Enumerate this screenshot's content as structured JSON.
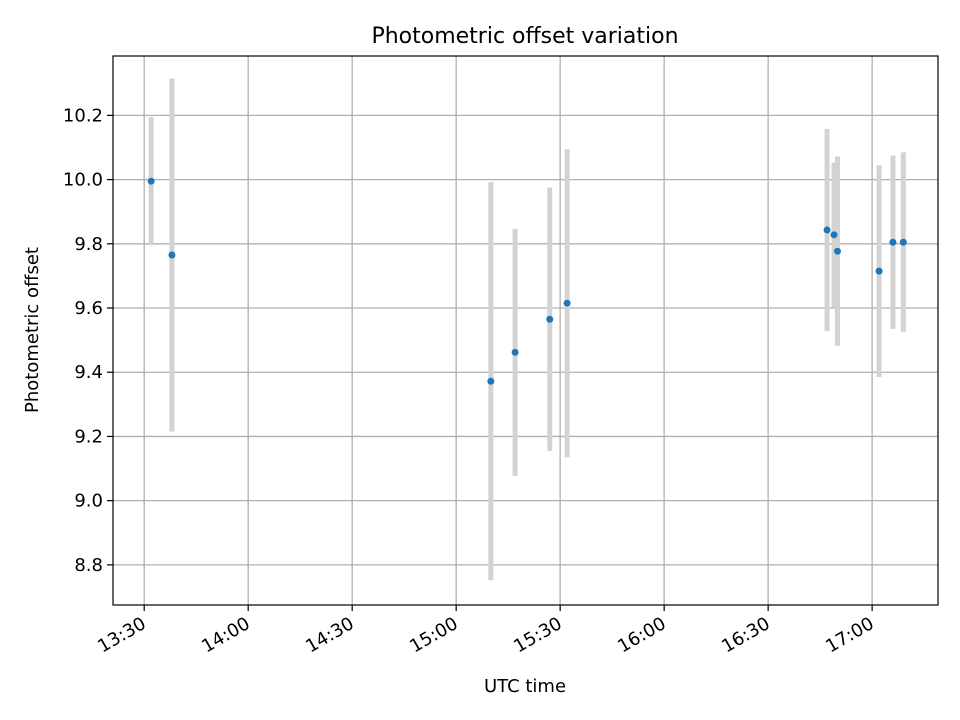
{
  "chart_data": {
    "type": "scatter",
    "title": "Photometric offset variation",
    "xlabel": "UTC time",
    "ylabel": "Photometric offset",
    "grid": true,
    "xlim": [
      "13:21",
      "17:19"
    ],
    "ylim": [
      8.675,
      10.385
    ],
    "x_ticks": [
      "13:30",
      "14:00",
      "14:30",
      "15:00",
      "15:30",
      "16:00",
      "16:30",
      "17:00"
    ],
    "y_ticks": [
      8.8,
      9.0,
      9.2,
      9.4,
      9.6,
      9.8,
      10.0,
      10.2
    ],
    "marker_color": "#1f77b4",
    "errorbar_color": "#d3d3d3",
    "points": [
      {
        "x": "13:32",
        "y": 9.995,
        "err_low": 9.795,
        "err_high": 10.195
      },
      {
        "x": "13:38",
        "y": 9.765,
        "err_low": 9.215,
        "err_high": 10.315
      },
      {
        "x": "15:10",
        "y": 9.372,
        "err_low": 8.752,
        "err_high": 9.992
      },
      {
        "x": "15:17",
        "y": 9.462,
        "err_low": 9.077,
        "err_high": 9.847
      },
      {
        "x": "15:27",
        "y": 9.565,
        "err_low": 9.155,
        "err_high": 9.975
      },
      {
        "x": "15:32",
        "y": 9.615,
        "err_low": 9.135,
        "err_high": 10.095
      },
      {
        "x": "16:47",
        "y": 9.843,
        "err_low": 9.528,
        "err_high": 10.158
      },
      {
        "x": "16:49",
        "y": 9.828,
        "err_low": 9.603,
        "err_high": 10.053
      },
      {
        "x": "16:50",
        "y": 9.777,
        "err_low": 9.482,
        "err_high": 10.072
      },
      {
        "x": "17:02",
        "y": 9.715,
        "err_low": 9.385,
        "err_high": 10.045
      },
      {
        "x": "17:06",
        "y": 9.805,
        "err_low": 9.535,
        "err_high": 10.075
      },
      {
        "x": "17:09",
        "y": 9.805,
        "err_low": 9.525,
        "err_high": 10.085
      }
    ]
  }
}
